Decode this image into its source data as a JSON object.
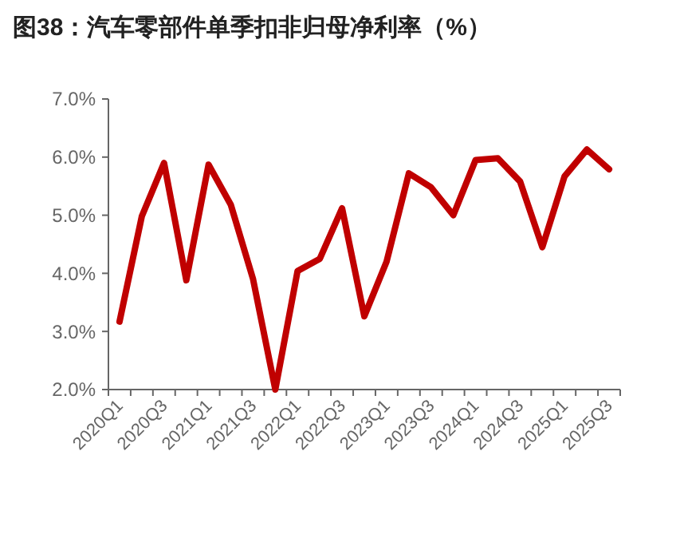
{
  "chart_data": {
    "type": "line",
    "title": "图38：汽车零部件单季扣非归母净利率（%）",
    "categories": [
      "2020Q1",
      null,
      "2020Q3",
      null,
      "2021Q1",
      null,
      "2021Q3",
      null,
      "2022Q1",
      null,
      "2022Q3",
      null,
      "2023Q1",
      null,
      "2023Q3",
      null,
      "2024Q1",
      null,
      "2024Q3",
      null,
      "2025Q1",
      null,
      "2025Q3"
    ],
    "series": [
      {
        "color": "#c00000",
        "values": [
          3.17,
          4.98,
          5.9,
          3.88,
          5.87,
          5.18,
          3.9,
          2.0,
          4.04,
          4.25,
          5.12,
          3.26,
          4.2,
          5.72,
          5.48,
          5.0,
          5.95,
          5.98,
          5.58,
          4.45,
          5.67,
          6.13,
          5.79
        ]
      }
    ],
    "ylim": [
      2,
      7
    ],
    "yticks": [
      {
        "value": 2,
        "label": "2.0%"
      },
      {
        "value": 3,
        "label": "3.0%"
      },
      {
        "value": 4,
        "label": "4.0%"
      },
      {
        "value": 5,
        "label": "5.0%"
      },
      {
        "value": 6,
        "label": "6.0%"
      },
      {
        "value": 7,
        "label": "7.0%"
      }
    ],
    "grid": false,
    "marker": "none",
    "line_style": "solid"
  }
}
